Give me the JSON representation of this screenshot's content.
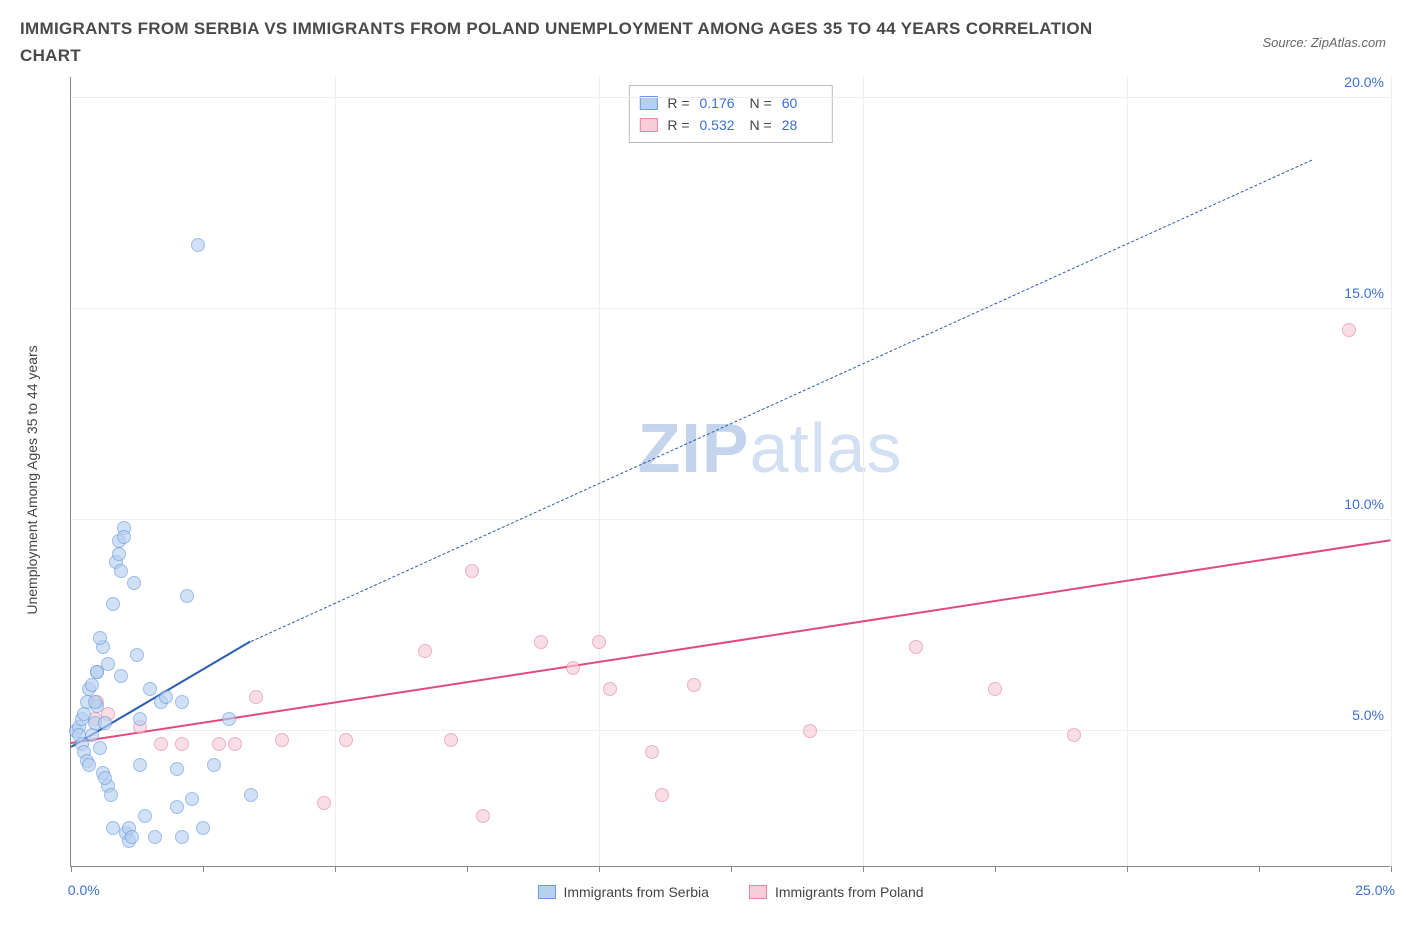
{
  "title": "IMMIGRANTS FROM SERBIA VS IMMIGRANTS FROM POLAND UNEMPLOYMENT AMONG AGES 35 TO 44 YEARS CORRELATION CHART",
  "source": "Source: ZipAtlas.com",
  "ylabel": "Unemployment Among Ages 35 to 44 years",
  "watermark_a": "ZIP",
  "watermark_b": "atlas",
  "chart": {
    "type": "scatter",
    "background_color": "#ffffff",
    "grid_color": "#eeeeee",
    "axis_color": "#888888",
    "xlim": [
      0,
      25
    ],
    "ylim": [
      1.8,
      20.5
    ],
    "xticks_major": [
      0,
      5,
      10,
      15,
      20,
      25
    ],
    "xticks_minor": [
      2.5,
      7.5,
      12.5,
      17.5,
      22.5
    ],
    "xtick_labels": {
      "0": "0.0%",
      "25": "25.0%"
    },
    "yticks": [
      5,
      10,
      15,
      20
    ],
    "ytick_labels": {
      "5": "5.0%",
      "10": "10.0%",
      "15": "15.0%",
      "20": "20.0%"
    },
    "marker_radius": 7,
    "marker_border_width": 1.2
  },
  "series": {
    "serbia": {
      "label": "Immigrants from Serbia",
      "fill_color": "#b8d0f0",
      "stroke_color": "#6a9be0",
      "fill_opacity": 0.65,
      "reg_color": "#2d5db0",
      "reg_width": 2.5,
      "reg_solid": {
        "x1": 0,
        "y1": 4.6,
        "x2": 3.4,
        "y2": 7.1
      },
      "reg_dash": {
        "x1": 3.4,
        "y1": 7.1,
        "x2": 23.5,
        "y2": 18.5
      },
      "points": [
        [
          0.1,
          5.0
        ],
        [
          0.15,
          5.1
        ],
        [
          0.15,
          4.9
        ],
        [
          0.2,
          5.3
        ],
        [
          0.2,
          4.7
        ],
        [
          0.25,
          5.4
        ],
        [
          0.25,
          4.5
        ],
        [
          0.3,
          5.7
        ],
        [
          0.3,
          4.3
        ],
        [
          0.35,
          6.0
        ],
        [
          0.4,
          6.1
        ],
        [
          0.4,
          4.9
        ],
        [
          0.45,
          5.2
        ],
        [
          0.5,
          6.4
        ],
        [
          0.5,
          6.4
        ],
        [
          0.5,
          5.6
        ],
        [
          0.55,
          4.6
        ],
        [
          0.6,
          7.0
        ],
        [
          0.6,
          4.0
        ],
        [
          0.65,
          5.2
        ],
        [
          0.7,
          6.6
        ],
        [
          0.7,
          3.7
        ],
        [
          0.75,
          3.5
        ],
        [
          0.8,
          8.0
        ],
        [
          0.8,
          2.7
        ],
        [
          0.85,
          9.0
        ],
        [
          0.9,
          9.5
        ],
        [
          0.9,
          9.2
        ],
        [
          0.95,
          8.8
        ],
        [
          1.0,
          9.8
        ],
        [
          1.0,
          9.6
        ],
        [
          1.05,
          2.6
        ],
        [
          1.1,
          2.7
        ],
        [
          1.1,
          2.4
        ],
        [
          1.15,
          2.5
        ],
        [
          1.2,
          8.5
        ],
        [
          1.3,
          4.2
        ],
        [
          1.3,
          5.3
        ],
        [
          1.4,
          3.0
        ],
        [
          1.5,
          6.0
        ],
        [
          1.6,
          2.5
        ],
        [
          1.7,
          5.7
        ],
        [
          1.8,
          5.8
        ],
        [
          2.0,
          4.1
        ],
        [
          2.0,
          3.2
        ],
        [
          2.1,
          5.7
        ],
        [
          2.1,
          2.5
        ],
        [
          2.2,
          8.2
        ],
        [
          2.3,
          3.4
        ],
        [
          2.4,
          16.5
        ],
        [
          2.5,
          2.7
        ],
        [
          2.7,
          4.2
        ],
        [
          3.0,
          5.3
        ],
        [
          3.4,
          3.5
        ],
        [
          0.45,
          5.7
        ],
        [
          0.55,
          7.2
        ],
        [
          0.95,
          6.3
        ],
        [
          1.25,
          6.8
        ],
        [
          0.35,
          4.2
        ],
        [
          0.65,
          3.9
        ]
      ]
    },
    "poland": {
      "label": "Immigrants from Poland",
      "fill_color": "#f6cdd8",
      "stroke_color": "#e687a3",
      "fill_opacity": 0.65,
      "reg_color": "#e04a7d",
      "reg_width": 2.5,
      "reg_solid": {
        "x1": 0,
        "y1": 4.7,
        "x2": 25,
        "y2": 9.5
      },
      "points": [
        [
          0.45,
          5.3
        ],
        [
          0.5,
          5.7
        ],
        [
          0.7,
          5.4
        ],
        [
          1.3,
          5.1
        ],
        [
          1.7,
          4.7
        ],
        [
          2.1,
          4.7
        ],
        [
          2.8,
          4.7
        ],
        [
          3.1,
          4.7
        ],
        [
          3.5,
          5.8
        ],
        [
          4.0,
          4.8
        ],
        [
          4.8,
          3.3
        ],
        [
          5.2,
          4.8
        ],
        [
          6.7,
          6.9
        ],
        [
          7.2,
          4.8
        ],
        [
          7.6,
          8.8
        ],
        [
          7.8,
          3.0
        ],
        [
          8.9,
          7.1
        ],
        [
          9.5,
          6.5
        ],
        [
          10.0,
          7.1
        ],
        [
          10.2,
          6.0
        ],
        [
          11.0,
          4.5
        ],
        [
          11.2,
          3.5
        ],
        [
          11.8,
          6.1
        ],
        [
          14.0,
          5.0
        ],
        [
          16.0,
          7.0
        ],
        [
          17.5,
          6.0
        ],
        [
          19.0,
          4.9
        ],
        [
          24.2,
          14.5
        ]
      ]
    }
  },
  "stats": {
    "serbia": {
      "R": "0.176",
      "N": "60"
    },
    "poland": {
      "R": "0.532",
      "N": "28"
    }
  }
}
